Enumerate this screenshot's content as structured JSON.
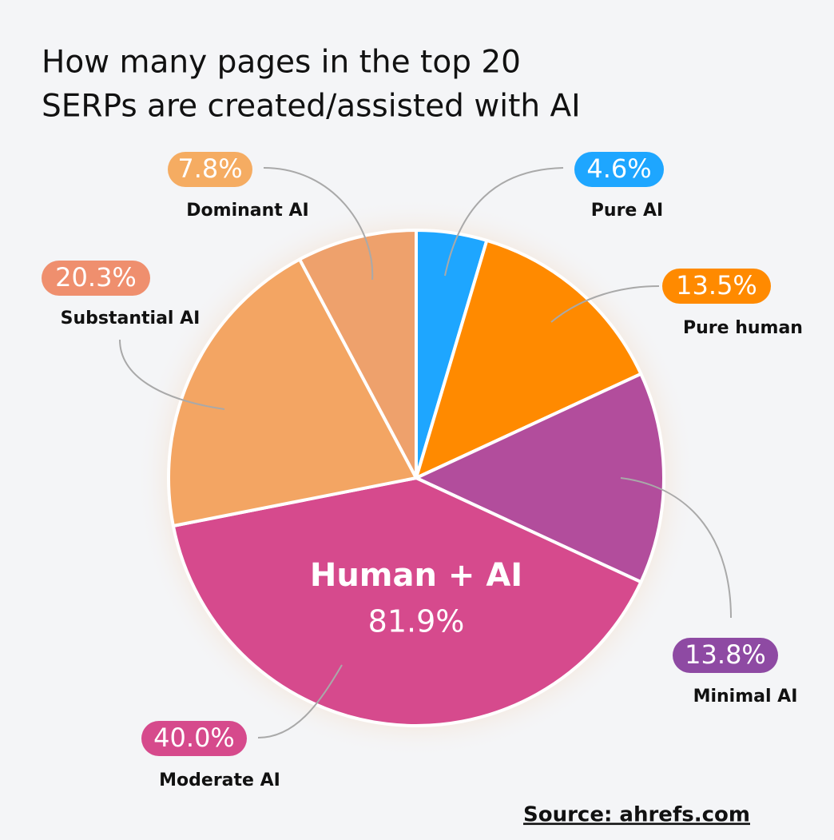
{
  "chart_data": {
    "type": "pie",
    "title": [
      "How many pages in the top 20",
      "SERPs are created/assisted with AI"
    ],
    "categories": [
      "Pure AI",
      "Pure human",
      "Minimal AI",
      "Moderate AI",
      "Substantial AI",
      "Dominant AI"
    ],
    "values": [
      4.6,
      13.5,
      13.8,
      40.0,
      20.3,
      7.8
    ],
    "value_labels": [
      "4.6%",
      "13.5%",
      "13.8%",
      "40.0%",
      "20.3%",
      "7.8%"
    ],
    "colors": [
      "#1ea6ff",
      "#ff8a00",
      "#b24d9c",
      "#d64a8d",
      "#f3a563",
      "#eea16c"
    ],
    "label_colors": [
      "#1ea6ff",
      "#ff8a00",
      "#8e4aa3",
      "#d64a8c",
      "#ef8f6e",
      "#f5ac62"
    ],
    "annotation": {
      "text": "Human + AI",
      "value": 81.9,
      "label": "81.9%"
    },
    "source": "Source: ahrefs.com"
  }
}
